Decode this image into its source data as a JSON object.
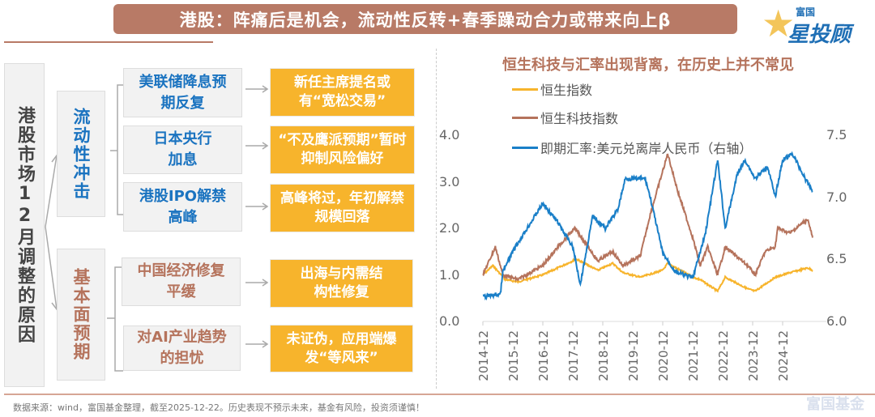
{
  "header": {
    "title": "港股：阵痛后是机会，流动性反转+春季躁动合力或带来向上β",
    "logo_small": "富国",
    "logo_big": "星投顾"
  },
  "diagram": {
    "root": "港股市场12月调整的原因",
    "categories": [
      {
        "label": "流动性冲击",
        "color": "#1a73c0",
        "factors": [
          {
            "label": "美联储降息预期反复",
            "impact": "新任主席提名或有“宽松交易”"
          },
          {
            "label": "日本央行加息",
            "impact": "“不及鹰派预期”暂时抑制风险偏好"
          },
          {
            "label": "港股IPO解禁高峰",
            "impact": "高峰将过，年初解禁规模回落"
          }
        ]
      },
      {
        "label": "基本面预期",
        "color": "#b5735c",
        "factors": [
          {
            "label": "中国经济修复平缓",
            "impact": "出海与内需结构性修复"
          },
          {
            "label": "对AI产业趋势的担忧",
            "impact": "未证伪，应用端爆发“等风来”"
          }
        ]
      }
    ]
  },
  "footer": "数据来源：wind，富国基金整理，截至2025-12-22。历史表现不预示未来，基金有风险，投资须谨慎！",
  "watermark": "富国基金",
  "chart_data": {
    "type": "line",
    "title": "恒生科技与汇率出现背离，在历史上并不常见",
    "legend_position": "top-left",
    "x_ticks": [
      "2014-12",
      "2015-12",
      "2016-12",
      "2017-12",
      "2018-12",
      "2019-12",
      "2020-12",
      "2021-12",
      "2022-12",
      "2023-12",
      "2024-12"
    ],
    "y_left": {
      "range": [
        0,
        4
      ],
      "ticks": [
        "0.0",
        "1.0",
        "2.0",
        "3.0",
        "4.0"
      ]
    },
    "y_right": {
      "range": [
        6.0,
        7.5
      ],
      "ticks": [
        "6.0",
        "6.5",
        "7.0",
        "7.5"
      ]
    },
    "grid": false,
    "series": [
      {
        "name": "恒生指数",
        "color": "#f7b42c",
        "axis": "left",
        "points": [
          [
            "2014-12",
            1.0
          ],
          [
            "2015-04",
            1.2
          ],
          [
            "2015-09",
            0.9
          ],
          [
            "2016-02",
            0.85
          ],
          [
            "2016-12",
            1.0
          ],
          [
            "2017-06",
            1.15
          ],
          [
            "2017-12",
            1.3
          ],
          [
            "2018-01",
            1.35
          ],
          [
            "2018-10",
            1.1
          ],
          [
            "2019-04",
            1.25
          ],
          [
            "2019-08",
            1.05
          ],
          [
            "2020-03",
            0.95
          ],
          [
            "2020-12",
            1.1
          ],
          [
            "2021-02",
            1.25
          ],
          [
            "2021-12",
            0.95
          ],
          [
            "2022-03",
            0.9
          ],
          [
            "2022-10",
            0.65
          ],
          [
            "2023-01",
            0.95
          ],
          [
            "2023-10",
            0.7
          ],
          [
            "2024-01",
            0.65
          ],
          [
            "2024-05",
            0.8
          ],
          [
            "2024-09",
            0.95
          ],
          [
            "2025-03",
            1.05
          ],
          [
            "2025-10",
            1.15
          ],
          [
            "2025-12",
            1.1
          ]
        ]
      },
      {
        "name": "恒生科技指数",
        "color": "#b5735c",
        "axis": "left",
        "points": [
          [
            "2014-12",
            1.0
          ],
          [
            "2015-05",
            1.6
          ],
          [
            "2015-08",
            1.0
          ],
          [
            "2016-02",
            0.9
          ],
          [
            "2016-12",
            1.2
          ],
          [
            "2017-06",
            1.6
          ],
          [
            "2017-11",
            1.9
          ],
          [
            "2018-01",
            2.0
          ],
          [
            "2018-10",
            1.3
          ],
          [
            "2019-04",
            1.5
          ],
          [
            "2019-08",
            1.2
          ],
          [
            "2020-03",
            1.4
          ],
          [
            "2020-07",
            2.3
          ],
          [
            "2021-02",
            3.6
          ],
          [
            "2021-06",
            2.8
          ],
          [
            "2021-12",
            1.8
          ],
          [
            "2022-03",
            1.2
          ],
          [
            "2022-06",
            1.6
          ],
          [
            "2022-10",
            1.0
          ],
          [
            "2023-01",
            1.6
          ],
          [
            "2023-10",
            1.2
          ],
          [
            "2024-01",
            1.0
          ],
          [
            "2024-05",
            1.5
          ],
          [
            "2024-09",
            1.6
          ],
          [
            "2024-10",
            2.0
          ],
          [
            "2025-03",
            1.9
          ],
          [
            "2025-10",
            2.2
          ],
          [
            "2025-12",
            1.8
          ]
        ]
      },
      {
        "name": "即期汇率:美元兑离岸人民币（右轴）",
        "color": "#1a7fc8",
        "axis": "right",
        "points": [
          [
            "2014-12",
            6.2
          ],
          [
            "2015-07",
            6.22
          ],
          [
            "2015-08",
            6.4
          ],
          [
            "2016-01",
            6.6
          ],
          [
            "2016-12",
            6.95
          ],
          [
            "2017-06",
            6.8
          ],
          [
            "2017-12",
            6.6
          ],
          [
            "2018-03",
            6.3
          ],
          [
            "2018-08",
            6.85
          ],
          [
            "2019-01",
            6.75
          ],
          [
            "2019-06",
            6.9
          ],
          [
            "2019-09",
            7.15
          ],
          [
            "2020-05",
            7.15
          ],
          [
            "2020-07",
            7.0
          ],
          [
            "2020-12",
            6.55
          ],
          [
            "2021-05",
            6.4
          ],
          [
            "2021-12",
            6.35
          ],
          [
            "2022-05",
            6.7
          ],
          [
            "2022-10",
            7.3
          ],
          [
            "2023-01",
            6.75
          ],
          [
            "2023-06",
            7.2
          ],
          [
            "2023-09",
            7.3
          ],
          [
            "2024-01",
            7.15
          ],
          [
            "2024-06",
            7.25
          ],
          [
            "2024-09",
            7.0
          ],
          [
            "2024-12",
            7.3
          ],
          [
            "2025-04",
            7.35
          ],
          [
            "2025-09",
            7.15
          ],
          [
            "2025-12",
            7.05
          ]
        ]
      }
    ]
  }
}
